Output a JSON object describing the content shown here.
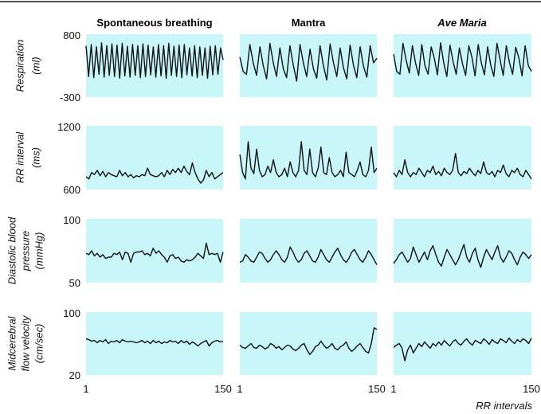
{
  "chart_data": {
    "type": "line",
    "column_titles": [
      "Spontaneous breathing",
      "Mantra",
      "Ave Maria"
    ],
    "xlabel": "RR intervals",
    "xlim": [
      1,
      150
    ],
    "x_tick_labels": [
      "1",
      "150"
    ],
    "grid": false,
    "panel_color": "#c9f6f8",
    "rows": [
      {
        "label_lines": [
          "Respiration",
          "(ml)"
        ],
        "ylim": [
          -300,
          800
        ],
        "y_tick_labels": [
          "800",
          "-300"
        ],
        "series": [
          [
            600,
            60,
            620,
            40,
            580,
            100,
            650,
            50,
            600,
            80,
            630,
            60,
            610,
            30,
            640,
            70,
            590,
            50,
            620,
            80,
            600,
            40,
            630,
            60,
            610,
            90,
            580,
            50,
            620,
            70,
            600,
            30,
            640,
            80,
            590,
            60,
            610,
            40,
            620,
            90,
            560,
            70,
            600,
            40,
            580,
            80,
            560,
            30,
            590,
            90,
            600,
            100,
            560,
            350
          ],
          [
            400,
            150,
            100,
            620,
            300,
            80,
            580,
            250,
            20,
            640,
            300,
            60,
            560,
            200,
            40,
            600,
            260,
            -20,
            620,
            300,
            60,
            540,
            200,
            30,
            600,
            250,
            0,
            630,
            300,
            60,
            560,
            220,
            20,
            610,
            260,
            40,
            580,
            240,
            50,
            600,
            300,
            380
          ],
          [
            450,
            150,
            100,
            640,
            350,
            120,
            600,
            300,
            80,
            620,
            250,
            100,
            580,
            380,
            90,
            650,
            300,
            60,
            610,
            320,
            100,
            560,
            280,
            80,
            600,
            400,
            70,
            620,
            300,
            90,
            580,
            260,
            60,
            640,
            350,
            80,
            600,
            300,
            100,
            570,
            380,
            70,
            600,
            250,
            150
          ]
        ]
      },
      {
        "label_lines": [
          "RR interval",
          "(ms)"
        ],
        "ylim": [
          600,
          1200
        ],
        "y_tick_labels": [
          "1200",
          "600"
        ],
        "series": [
          [
            720,
            700,
            760,
            740,
            780,
            730,
            770,
            720,
            760,
            740,
            730,
            720,
            780,
            730,
            760,
            720,
            740,
            710,
            730,
            720,
            740,
            730,
            800,
            740,
            730,
            720,
            730,
            760,
            720,
            780,
            740,
            790,
            760,
            800,
            760,
            820,
            770,
            740,
            850,
            760,
            700,
            660,
            690,
            780,
            720,
            760,
            700,
            720,
            740,
            760
          ],
          [
            930,
            760,
            700,
            1050,
            800,
            750,
            980,
            780,
            720,
            740,
            820,
            760,
            880,
            760,
            720,
            740,
            800,
            720,
            860,
            760,
            720,
            780,
            1050,
            780,
            740,
            980,
            760,
            720,
            800,
            1000,
            760,
            740,
            900,
            760,
            720,
            740,
            780,
            720,
            950,
            760,
            740,
            720,
            780,
            860,
            740,
            720,
            780,
            1000,
            760,
            800
          ],
          [
            760,
            720,
            780,
            740,
            880,
            760,
            720,
            760,
            740,
            800,
            760,
            720,
            780,
            760,
            820,
            740,
            770,
            730,
            800,
            760,
            740,
            780,
            940,
            760,
            730,
            770,
            750,
            800,
            760,
            730,
            780,
            750,
            860,
            760,
            740,
            770,
            720,
            780,
            760,
            830,
            750,
            720,
            780,
            760,
            800,
            740,
            720,
            780,
            740,
            700
          ]
        ]
      },
      {
        "label_lines": [
          "Diastolic blood",
          "pressure",
          "(mmHg)"
        ],
        "ylim": [
          50,
          100
        ],
        "y_tick_labels": [
          "100",
          "50"
        ],
        "series": [
          [
            73,
            72,
            75,
            71,
            73,
            70,
            72,
            69,
            70,
            70,
            73,
            72,
            74,
            68,
            74,
            73,
            66,
            73,
            74,
            74,
            75,
            72,
            73,
            71,
            77,
            73,
            75,
            72,
            70,
            66,
            71,
            72,
            69,
            70,
            67,
            66,
            68,
            67,
            68,
            70,
            73,
            71,
            69,
            81,
            72,
            73,
            72,
            73,
            66,
            74
          ],
          [
            66,
            67,
            72,
            70,
            67,
            66,
            70,
            74,
            73,
            69,
            66,
            68,
            72,
            75,
            72,
            68,
            66,
            70,
            78,
            74,
            69,
            66,
            68,
            73,
            75,
            71,
            67,
            66,
            70,
            76,
            72,
            68,
            66,
            70,
            74,
            77,
            72,
            68,
            66,
            69,
            74,
            76,
            72,
            68,
            66,
            70,
            75,
            72,
            68,
            64
          ],
          [
            65,
            68,
            72,
            74,
            70,
            66,
            69,
            78,
            72,
            66,
            70,
            74,
            68,
            75,
            79,
            72,
            66,
            63,
            70,
            76,
            72,
            68,
            64,
            68,
            74,
            80,
            70,
            66,
            73,
            77,
            68,
            62,
            70,
            76,
            72,
            68,
            74,
            79,
            70,
            66,
            70,
            75,
            73,
            68,
            64,
            70,
            74,
            72,
            69,
            72
          ]
        ]
      },
      {
        "label_lines": [
          "Midcerebral",
          "flow velocity",
          "(cm/sec)"
        ],
        "ylim": [
          20,
          100
        ],
        "y_tick_labels": [
          "100",
          "20"
        ],
        "series": [
          [
            66,
            65,
            63,
            64,
            61,
            64,
            62,
            65,
            60,
            63,
            62,
            64,
            61,
            65,
            63,
            62,
            63,
            62,
            61,
            62,
            64,
            61,
            63,
            60,
            64,
            61,
            63,
            60,
            62,
            61,
            64,
            62,
            63,
            60,
            64,
            61,
            63,
            59,
            62,
            60,
            57,
            60,
            62,
            64,
            57,
            61,
            63,
            64,
            62,
            63
          ],
          [
            58,
            55,
            54,
            57,
            60,
            55,
            54,
            58,
            56,
            53,
            55,
            60,
            58,
            54,
            56,
            52,
            55,
            58,
            57,
            53,
            51,
            54,
            58,
            60,
            52,
            46,
            50,
            56,
            58,
            63,
            58,
            54,
            56,
            60,
            54,
            52,
            56,
            58,
            62,
            54,
            50,
            53,
            57,
            60,
            55,
            50,
            48,
            60,
            80,
            78
          ],
          [
            55,
            58,
            60,
            54,
            38,
            52,
            58,
            48,
            54,
            60,
            56,
            62,
            58,
            54,
            60,
            57,
            62,
            58,
            64,
            60,
            57,
            62,
            65,
            60,
            58,
            63,
            66,
            61,
            58,
            64,
            62,
            60,
            66,
            63,
            59,
            65,
            62,
            60,
            66,
            64,
            61,
            67,
            63,
            60,
            65,
            62,
            66,
            64,
            60,
            67
          ]
        ]
      }
    ]
  }
}
